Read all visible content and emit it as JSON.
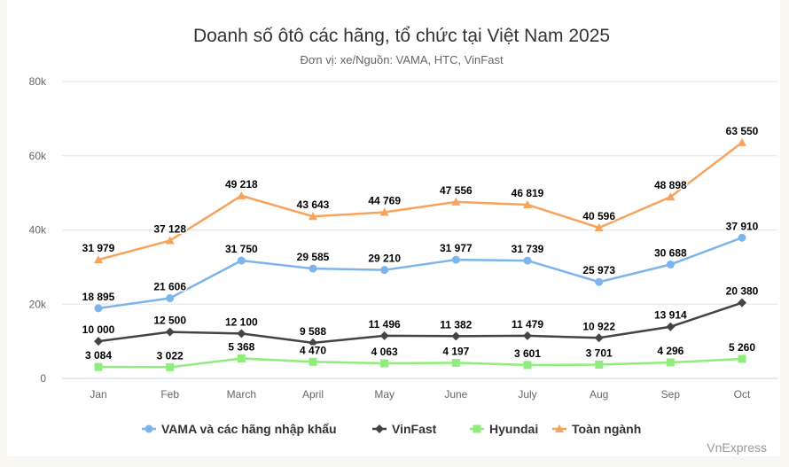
{
  "chart_data": {
    "type": "line",
    "title": "Doanh số ôtô các hãng, tổ chức tại Việt Nam 2025",
    "subtitle": "Đơn vị: xe/Nguồn: VAMA, HTC, VinFast",
    "categories": [
      "Jan",
      "Feb",
      "March",
      "April",
      "May",
      "June",
      "July",
      "Aug",
      "Sep",
      "Oct"
    ],
    "ylim": [
      0,
      80000
    ],
    "yticks": [
      0,
      20000,
      40000,
      60000,
      80000
    ],
    "ytick_labels": [
      "0",
      "20k",
      "40k",
      "60k",
      "80k"
    ],
    "grid": true,
    "legend_position": "bottom",
    "series": [
      {
        "name": "VAMA và các hãng nhập khẩu",
        "color": "#7cb5ec",
        "marker": "circle",
        "values": [
          18895,
          21606,
          31750,
          29585,
          29210,
          31977,
          31739,
          25973,
          30688,
          37910
        ]
      },
      {
        "name": "VinFast",
        "color": "#434348",
        "marker": "diamond",
        "values": [
          10000,
          12500,
          12100,
          9588,
          11496,
          11382,
          11479,
          10922,
          13914,
          20380
        ]
      },
      {
        "name": "Hyundai",
        "color": "#90ed7d",
        "marker": "square",
        "values": [
          3084,
          3022,
          5368,
          4470,
          4063,
          4197,
          3601,
          3701,
          4296,
          5260
        ]
      },
      {
        "name": "Toàn ngành",
        "color": "#f7a35c",
        "marker": "triangle",
        "values": [
          31979,
          37128,
          49218,
          43643,
          44769,
          47556,
          46819,
          40596,
          48898,
          63550
        ]
      }
    ]
  },
  "credit": "VnExpress"
}
